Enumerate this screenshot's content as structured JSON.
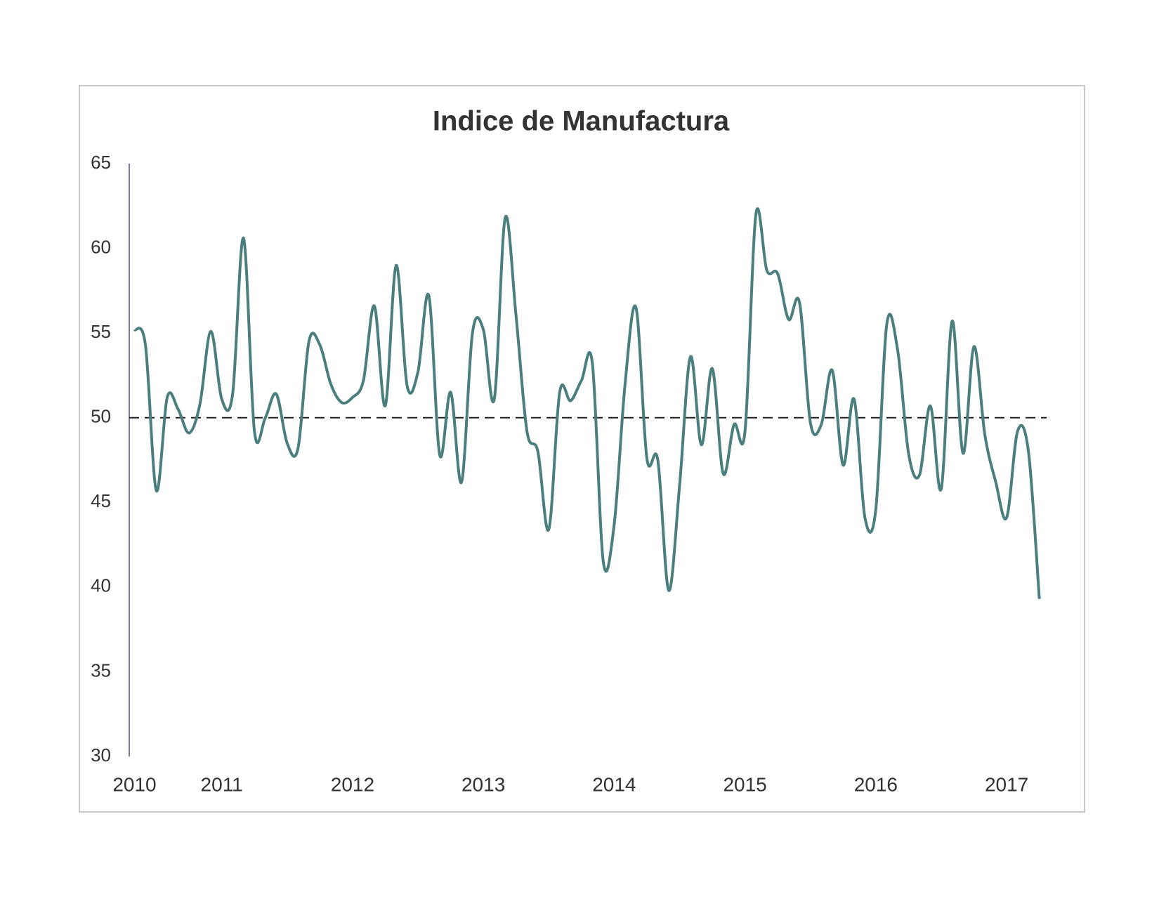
{
  "chart_data": {
    "type": "line",
    "title": "Indice de Manufactura",
    "categories": [
      "2010",
      null,
      null,
      null,
      null,
      null,
      null,
      null,
      "2011",
      null,
      null,
      null,
      null,
      null,
      null,
      null,
      null,
      null,
      null,
      null,
      "2012",
      null,
      null,
      null,
      null,
      null,
      null,
      null,
      null,
      null,
      null,
      null,
      "2013",
      null,
      null,
      null,
      null,
      null,
      null,
      null,
      null,
      null,
      null,
      null,
      "2014",
      null,
      null,
      null,
      null,
      null,
      null,
      null,
      null,
      null,
      null,
      null,
      "2015",
      null,
      null,
      null,
      null,
      null,
      null,
      null,
      null,
      null,
      null,
      null,
      "2016",
      null,
      null,
      null,
      null,
      null,
      null,
      null,
      null,
      null,
      null,
      null,
      "2017",
      null,
      null,
      null
    ],
    "values": [
      55.2,
      54.3,
      45.7,
      51.2,
      50.5,
      49.1,
      50.8,
      55.1,
      51.1,
      51.4,
      60.6,
      49.2,
      50.0,
      51.4,
      48.5,
      48.2,
      54.5,
      54.3,
      52.0,
      50.9,
      51.2,
      52.2,
      56.6,
      50.7,
      59.0,
      51.9,
      52.7,
      57.2,
      47.8,
      51.5,
      46.2,
      55.0,
      55.2,
      51.1,
      61.8,
      56.0,
      49.2,
      48.0,
      43.4,
      51.5,
      51.0,
      52.2,
      53.2,
      41.5,
      43.7,
      52.0,
      56.5,
      47.6,
      47.5,
      39.8,
      46.0,
      53.6,
      48.4,
      52.9,
      46.7,
      49.6,
      49.2,
      62.0,
      58.7,
      58.5,
      55.8,
      56.8,
      49.7,
      49.6,
      52.8,
      47.2,
      51.1,
      44.1,
      44.6,
      55.5,
      54.0,
      47.9,
      46.6,
      50.7,
      45.8,
      55.7,
      47.9,
      54.2,
      49.0,
      46.2,
      44.1,
      49.2,
      48.0,
      39.3
    ],
    "color": "#4a7f7d",
    "reference_line": 50,
    "ylim": [
      30,
      65
    ],
    "yticks": [
      30,
      35,
      40,
      45,
      50,
      55,
      60,
      65
    ],
    "grid": false
  }
}
